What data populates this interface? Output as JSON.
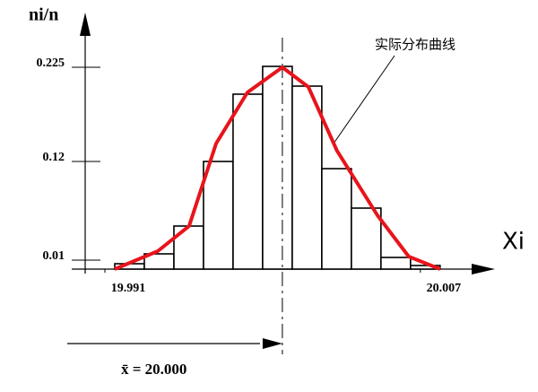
{
  "chart_data": {
    "type": "histogram",
    "y_label": "ni/n",
    "x_label": "Xi",
    "bins": [
      19.9915,
      19.993,
      19.9945,
      19.996,
      19.9975,
      19.999,
      20.0005,
      20.002,
      20.0035,
      20.005,
      20.0065,
      20.008
    ],
    "values": [
      0.006,
      0.017,
      0.048,
      0.12,
      0.195,
      0.226,
      0.204,
      0.112,
      0.068,
      0.013,
      0.004
    ],
    "bar_color": "#ffffff",
    "curve": {
      "name": "实际分布曲线",
      "color": "#e8141b",
      "x": [
        19.9915,
        19.99368,
        19.99527,
        19.99664,
        19.99823,
        20.0,
        20.00132,
        20.00277,
        20.00482,
        20.00641,
        20.008
      ],
      "values": [
        0,
        0.02,
        0.048,
        0.14,
        0.197,
        0.225,
        0.203,
        0.132,
        0.06,
        0.014,
        0
      ]
    },
    "mean": {
      "value": 20.0,
      "label": "x̄ = 20.000"
    },
    "xlim": [
      19.99,
      20.0106
    ],
    "ylim": [
      0,
      0.28
    ],
    "xticks": [
      19.991,
      20.007
    ],
    "yticks": [
      0.01,
      0.12,
      0.225
    ]
  }
}
